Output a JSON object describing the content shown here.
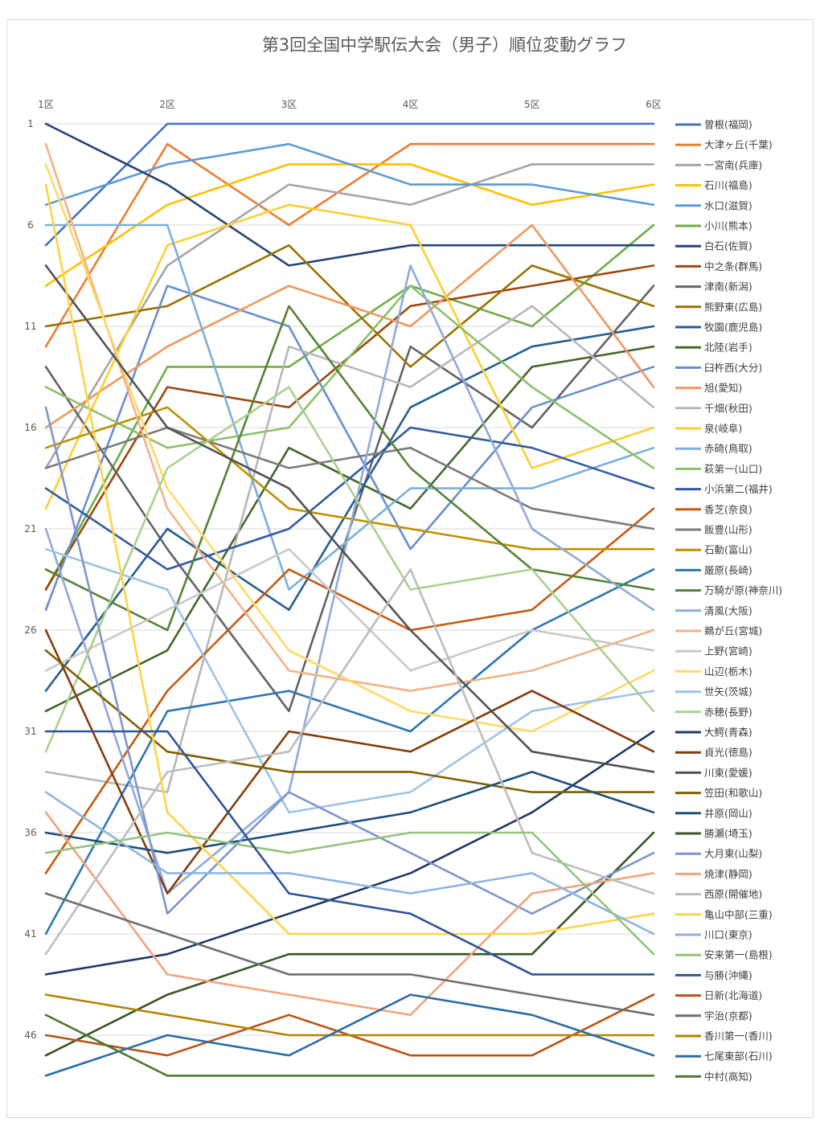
{
  "chart_data": {
    "type": "line",
    "title": "第3回全国中学駅伝大会（男子）順位変動グラフ",
    "xlabel": "",
    "ylabel": "",
    "categories": [
      "1区",
      "2区",
      "3区",
      "4区",
      "5区",
      "6区"
    ],
    "y_ticks": [
      1,
      6,
      11,
      16,
      21,
      26,
      31,
      36,
      41,
      46
    ],
    "ylim": [
      1,
      48
    ],
    "y_reversed": true,
    "grid": true,
    "legend_position": "right",
    "series": [
      {
        "name": "曽根(福岡)",
        "color": "#4472C4",
        "values": [
          7,
          1,
          1,
          1,
          1,
          1
        ]
      },
      {
        "name": "大津ヶ丘(千葉)",
        "color": "#ED7D31",
        "values": [
          12,
          2,
          6,
          2,
          2,
          2
        ]
      },
      {
        "name": "一宮南(兵庫)",
        "color": "#A5A5A5",
        "values": [
          18,
          8,
          4,
          5,
          3,
          3
        ]
      },
      {
        "name": "石川(福島)",
        "color": "#FFC000",
        "values": [
          9,
          5,
          3,
          3,
          5,
          4
        ]
      },
      {
        "name": "水口(滋賀)",
        "color": "#5B9BD5",
        "values": [
          5,
          3,
          2,
          4,
          4,
          5
        ]
      },
      {
        "name": "小川(熊本)",
        "color": "#70AD47",
        "values": [
          24,
          13,
          13,
          9,
          11,
          6
        ]
      },
      {
        "name": "白石(佐賀)",
        "color": "#264478",
        "values": [
          1,
          4,
          8,
          7,
          7,
          7
        ]
      },
      {
        "name": "中之条(群馬)",
        "color": "#9E480E",
        "values": [
          24,
          14,
          15,
          10,
          9,
          8
        ]
      },
      {
        "name": "津南(新潟)",
        "color": "#636363",
        "values": [
          13,
          22,
          30,
          12,
          16,
          9
        ]
      },
      {
        "name": "熊野東(広島)",
        "color": "#997300",
        "values": [
          11,
          10,
          7,
          13,
          8,
          10
        ]
      },
      {
        "name": "牧園(鹿児島)",
        "color": "#255E91",
        "values": [
          29,
          21,
          25,
          15,
          12,
          11
        ]
      },
      {
        "name": "北陸(岩手)",
        "color": "#43682B",
        "values": [
          30,
          27,
          17,
          20,
          13,
          12
        ]
      },
      {
        "name": "臼杵西(大分)",
        "color": "#698ED0",
        "values": [
          25,
          9,
          11,
          22,
          15,
          13
        ]
      },
      {
        "name": "旭(愛知)",
        "color": "#F1975A",
        "values": [
          16,
          12,
          9,
          11,
          6,
          14
        ]
      },
      {
        "name": "千畑(秋田)",
        "color": "#B7B7B7",
        "values": [
          33,
          34,
          12,
          14,
          10,
          15
        ]
      },
      {
        "name": "泉(岐阜)",
        "color": "#FFCD33",
        "values": [
          20,
          7,
          5,
          6,
          18,
          16
        ]
      },
      {
        "name": "赤碕(鳥取)",
        "color": "#7CAFDD",
        "values": [
          6,
          6,
          24,
          19,
          19,
          17
        ]
      },
      {
        "name": "萩第一(山口)",
        "color": "#8CC168",
        "values": [
          14,
          17,
          16,
          9,
          14,
          18
        ]
      },
      {
        "name": "小浜第二(福井)",
        "color": "#335AA1",
        "values": [
          19,
          23,
          21,
          16,
          17,
          19
        ]
      },
      {
        "name": "香芝(奈良)",
        "color": "#C65911",
        "values": [
          38,
          29,
          23,
          26,
          25,
          20
        ]
      },
      {
        "name": "飯豊(山形)",
        "color": "#7B7B7B",
        "values": [
          18,
          16,
          18,
          17,
          20,
          21
        ]
      },
      {
        "name": "石動(富山)",
        "color": "#BF9000",
        "values": [
          17,
          15,
          20,
          21,
          22,
          22
        ]
      },
      {
        "name": "厳原(長崎)",
        "color": "#2E75B6",
        "values": [
          41,
          30,
          29,
          31,
          26,
          23
        ]
      },
      {
        "name": "万騎が原(神奈川)",
        "color": "#548235",
        "values": [
          23,
          26,
          10,
          18,
          23,
          24
        ]
      },
      {
        "name": "清風(大阪)",
        "color": "#8FAADC",
        "values": [
          21,
          39,
          34,
          8,
          21,
          25
        ]
      },
      {
        "name": "鵜が丘(宮城)",
        "color": "#F4B183",
        "values": [
          2,
          20,
          28,
          29,
          28,
          26
        ]
      },
      {
        "name": "上野(宮崎)",
        "color": "#C9C9C9",
        "values": [
          28,
          25,
          22,
          28,
          26,
          27
        ]
      },
      {
        "name": "山辺(栃木)",
        "color": "#FFD966",
        "values": [
          3,
          19,
          27,
          30,
          31,
          28
        ]
      },
      {
        "name": "世矢(茨城)",
        "color": "#9DC3E6",
        "values": [
          22,
          24,
          35,
          34,
          30,
          29
        ]
      },
      {
        "name": "赤穂(長野)",
        "color": "#A9D18E",
        "values": [
          32,
          18,
          14,
          24,
          23,
          30
        ]
      },
      {
        "name": "大鰐(青森)",
        "color": "#203864",
        "values": [
          43,
          42,
          40,
          38,
          35,
          31
        ]
      },
      {
        "name": "貞光(徳島)",
        "color": "#843C0C",
        "values": [
          26,
          39,
          31,
          32,
          29,
          32
        ]
      },
      {
        "name": "川東(愛媛)",
        "color": "#525252",
        "values": [
          8,
          16,
          19,
          26,
          32,
          33
        ]
      },
      {
        "name": "笠田(和歌山)",
        "color": "#7F6000",
        "values": [
          27,
          32,
          33,
          33,
          34,
          34
        ]
      },
      {
        "name": "井原(岡山)",
        "color": "#1F4E79",
        "values": [
          36,
          37,
          36,
          35,
          33,
          35
        ]
      },
      {
        "name": "勝瀬(埼玉)",
        "color": "#375623",
        "values": [
          47,
          44,
          42,
          42,
          42,
          36
        ]
      },
      {
        "name": "大月東(山梨)",
        "color": "#7F96CC",
        "values": [
          15,
          40,
          34,
          37,
          40,
          37
        ]
      },
      {
        "name": "焼津(静岡)",
        "color": "#F4A37C",
        "values": [
          35,
          43,
          44,
          45,
          39,
          38
        ]
      },
      {
        "name": "西原(開催地)",
        "color": "#BDBDBD",
        "values": [
          42,
          33,
          32,
          23,
          37,
          39
        ]
      },
      {
        "name": "亀山中部(三重)",
        "color": "#FFD347",
        "values": [
          4,
          35,
          41,
          41,
          41,
          40
        ]
      },
      {
        "name": "川口(東京)",
        "color": "#8EB4E3",
        "values": [
          34,
          38,
          38,
          39,
          38,
          41
        ]
      },
      {
        "name": "安来第一(島根)",
        "color": "#93C47D",
        "values": [
          37,
          36,
          37,
          36,
          36,
          42
        ]
      },
      {
        "name": "与勝(沖縄)",
        "color": "#2F5597",
        "values": [
          31,
          31,
          39,
          40,
          43,
          43
        ]
      },
      {
        "name": "日新(北海道)",
        "color": "#B85418",
        "values": [
          46,
          47,
          45,
          47,
          47,
          44
        ]
      },
      {
        "name": "宇治(京都)",
        "color": "#6F6F6F",
        "values": [
          39,
          41,
          43,
          43,
          44,
          45
        ]
      },
      {
        "name": "香川第一(香川)",
        "color": "#B38600",
        "values": [
          44,
          45,
          46,
          46,
          46,
          46
        ]
      },
      {
        "name": "七尾東部(石川)",
        "color": "#2A6CA8",
        "values": [
          48,
          46,
          47,
          44,
          45,
          47
        ]
      },
      {
        "name": "中村(高知)",
        "color": "#4B7A2E",
        "values": [
          45,
          48,
          48,
          48,
          48,
          48
        ]
      }
    ]
  }
}
